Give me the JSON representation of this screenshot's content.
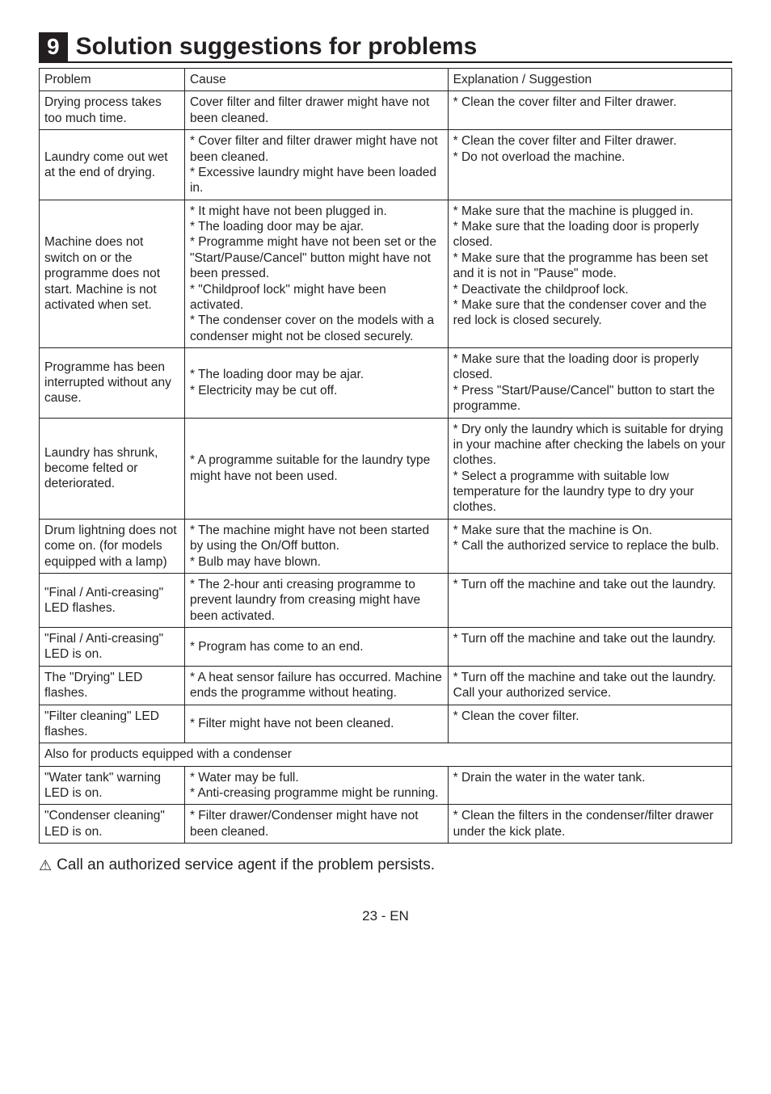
{
  "heading": {
    "number": "9",
    "title": "Solution suggestions for problems"
  },
  "table": {
    "headers": [
      "Problem",
      "Cause",
      "Explanation / Suggestion"
    ],
    "rows": [
      {
        "problem": "Drying process takes too much time.",
        "cause": " Cover filter and filter drawer might have not been cleaned.",
        "suggestion": "* Clean the cover filter and Filter drawer."
      },
      {
        "problem": "Laundry come out wet at the end of drying.",
        "cause": "* Cover filter and filter drawer might have not been cleaned.\n* Excessive laundry might have been loaded in.",
        "suggestion": "* Clean the cover filter and Filter drawer.\n* Do not overload the machine."
      },
      {
        "problem": "Machine does not switch on or the programme does not start. Machine is not activated when set.",
        "cause": "* It might have not been plugged in.\n* The loading door may be ajar.\n* Programme might have not been set or the \"Start/Pause/Cancel\" button might have not been pressed.\n* \"Childproof lock\" might have been activated.\n* The condenser cover on the models with a condenser might not be closed securely.",
        "suggestion": "* Make sure that the machine is plugged in.\n* Make sure that the loading door is properly closed.\n* Make sure that the programme has been set and it is not in \"Pause\" mode.\n* Deactivate the childproof lock.\n* Make sure that the condenser cover and the red lock is closed securely."
      },
      {
        "problem": "Programme has been interrupted without any cause.",
        "cause": "* The loading door may be ajar.\n* Electricity may be cut off.",
        "suggestion": "* Make sure that the loading door is properly closed.\n* Press \"Start/Pause/Cancel\" button to start the programme."
      },
      {
        "problem": "Laundry has shrunk, become felted or deteriorated.",
        "cause": "* A programme suitable for the laundry type might have not been used.",
        "suggestion": "* Dry only the laundry which is suitable for drying in your machine after checking the labels on your clothes.\n* Select a programme with suitable low temperature for the laundry type to dry your clothes."
      },
      {
        "problem": "Drum lightning does not come on. (for models equipped with a lamp)",
        "cause": "* The machine might have not been started by using the On/Off button.\n* Bulb may have blown.",
        "suggestion": "* Make sure that the machine is On.\n* Call the authorized service to replace the bulb."
      },
      {
        "problem": "\"Final / Anti-creasing\" LED flashes.",
        "cause": "* The 2-hour anti creasing programme to prevent laundry from creasing might have been activated.",
        "suggestion": "* Turn off the machine and take out the laundry."
      },
      {
        "problem": "\"Final / Anti-creasing\" LED is on.",
        "cause": "* Program has come to an end.",
        "suggestion": "* Turn off the machine and take out the laundry."
      },
      {
        "problem": "The \"Drying\" LED flashes.",
        "cause": "* A heat sensor failure has occurred. Machine ends the programme without heating.",
        "suggestion": "* Turn off the machine and take out the laundry. Call your authorized service."
      },
      {
        "problem": "\"Filter cleaning\" LED flashes.",
        "cause": "* Filter might have not been cleaned.",
        "suggestion": "* Clean the cover filter."
      }
    ],
    "section_row": "Also for products equipped with a condenser",
    "rows2": [
      {
        "problem": "\"Water tank\" warning LED is on.",
        "cause": "* Water may be full.\n* Anti-creasing programme might be running.",
        "suggestion": "* Drain the water in the water tank."
      },
      {
        "problem": "\"Condenser cleaning\" LED is on.",
        "cause": "* Filter drawer/Condenser might have not been cleaned.",
        "suggestion": "* Clean the filters in the condenser/filter drawer under the kick plate."
      }
    ]
  },
  "warning": {
    "icon": "⚠",
    "text": "Call an authorized service agent if the problem persists."
  },
  "page_number": "23 - EN"
}
